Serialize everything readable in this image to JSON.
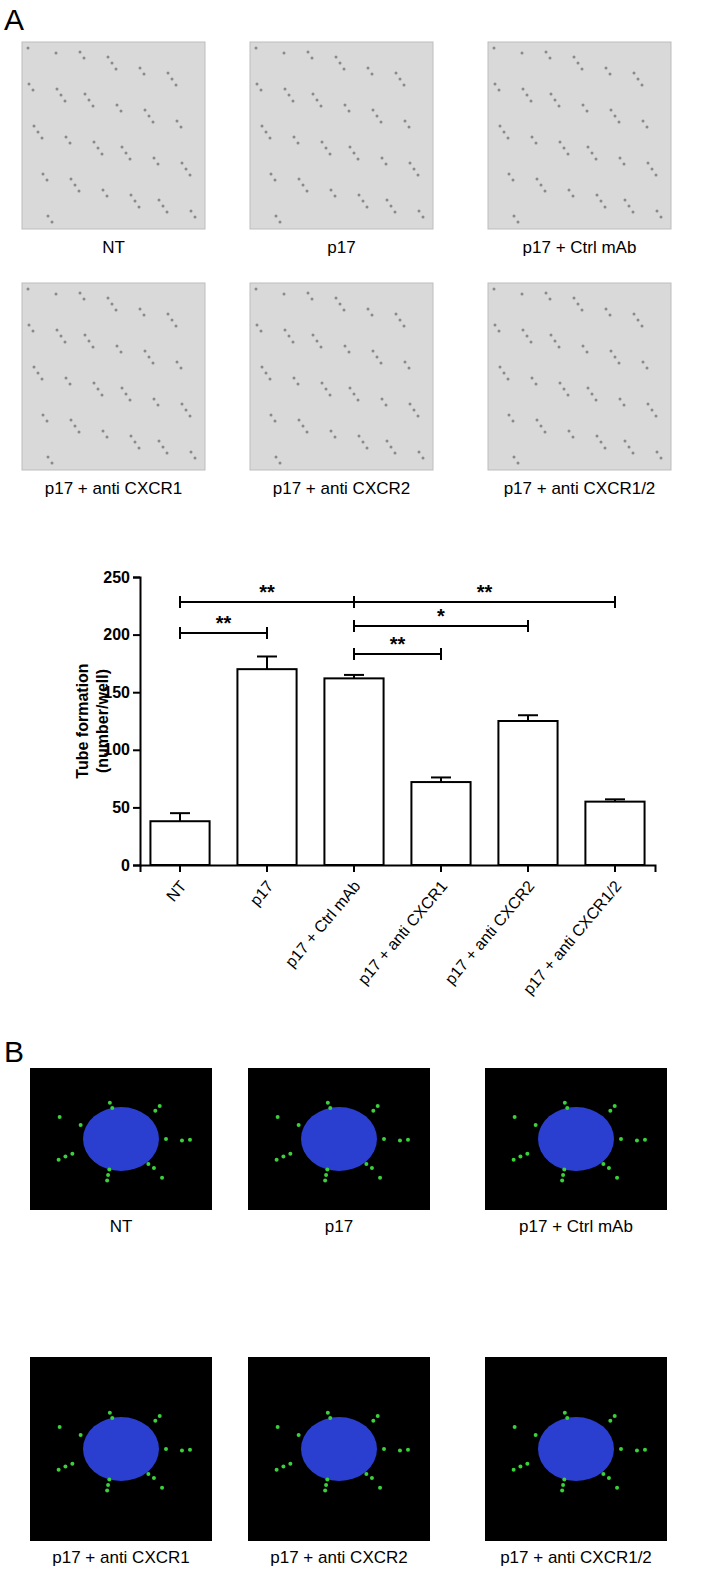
{
  "panel_labels": [
    "A",
    "B"
  ],
  "panel_a_captions": [
    "NT",
    "p17",
    "p17 + Ctrl mAb",
    "p17 + anti CXCR1",
    "p17 + anti CXCR2",
    "p17 + anti CXCR1/2"
  ],
  "panel_b_captions": [
    "NT",
    "p17",
    "p17 + Ctrl mAb",
    "p17 + anti CXCR1",
    "p17 + anti CXCR2",
    "p17 + anti CXCR1/2"
  ],
  "chart_data": {
    "type": "bar",
    "y_label": [
      "Tube formation",
      "(number/well)"
    ],
    "categories": [
      "NT",
      "p17",
      "p17 + Ctrl mAb",
      "p17 + anti CXCR1",
      "p17 + anti CXCR2",
      "p17 + anti CXCR1/2"
    ],
    "values": [
      38,
      170,
      162,
      72,
      125,
      55
    ],
    "errors": [
      7,
      11,
      3,
      4,
      5,
      2
    ],
    "color": "#ffffff",
    "ylim": [
      0,
      250
    ],
    "yticks": [
      0,
      50,
      100,
      150,
      200,
      250
    ],
    "grid": false,
    "annotations": [
      {
        "from": "NT",
        "to": "p17",
        "label": "**"
      },
      {
        "from": "NT",
        "to": "p17 + Ctrl mAb",
        "label": "**"
      },
      {
        "from": "p17 + Ctrl mAb",
        "to": "p17 + anti CXCR1",
        "label": "**"
      },
      {
        "from": "p17 + Ctrl mAb",
        "to": "p17 + anti CXCR2",
        "label": "*"
      },
      {
        "from": "p17 + Ctrl mAb",
        "to": "p17 + anti CXCR1/2",
        "label": "**"
      }
    ]
  }
}
